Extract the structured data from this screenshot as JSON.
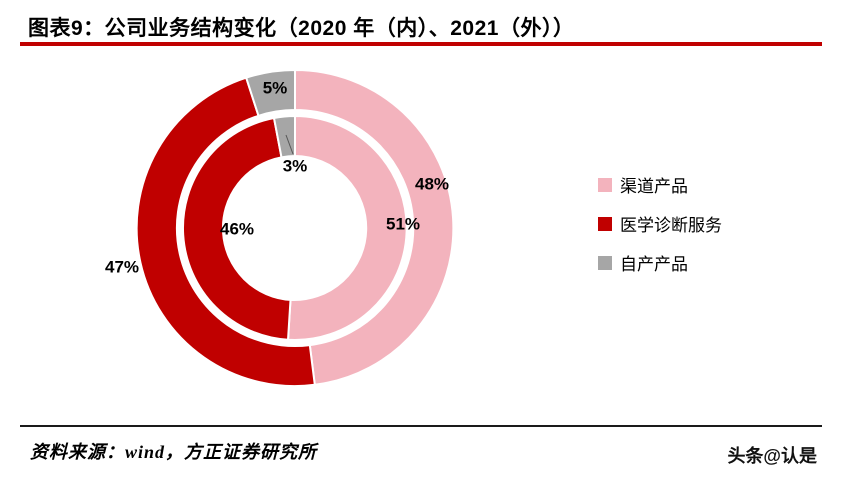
{
  "title": "图表9：公司业务结构变化（2020 年（内）、2021（外））",
  "source": "资料来源：wind，方正证券研究所",
  "watermark": "头条@认是",
  "colors": {
    "accent_rule": "#C00000",
    "pink": "#F3B3BD",
    "red": "#C00000",
    "gray": "#A6A6A6"
  },
  "legend": [
    {
      "label": "渠道产品",
      "color": "#F3B3BD"
    },
    {
      "label": "医学诊断服务",
      "color": "#C00000"
    },
    {
      "label": "自产产品",
      "color": "#A6A6A6"
    }
  ],
  "chart_data": {
    "type": "pie",
    "subtype": "nested-donut",
    "title": "公司业务结构变化（2020 年（内）、2021（外））",
    "categories": [
      "渠道产品",
      "医学诊断服务",
      "自产产品"
    ],
    "colors": [
      "#F3B3BD",
      "#C00000",
      "#A6A6A6"
    ],
    "direction": "clockwise",
    "start_angle_deg": 0,
    "legend_position": "right",
    "series": [
      {
        "name": "2020年（内环）",
        "ring": "inner",
        "values": [
          51,
          46,
          3
        ],
        "labels": [
          "51%",
          "46%",
          "3%"
        ]
      },
      {
        "name": "2021年（外环）",
        "ring": "outer",
        "values": [
          48,
          47,
          5
        ],
        "labels": [
          "48%",
          "47%",
          "5%"
        ]
      }
    ]
  }
}
